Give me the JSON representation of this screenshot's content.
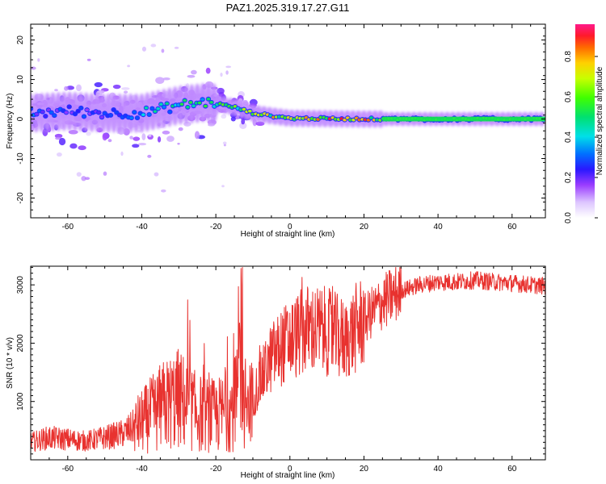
{
  "title": "PAZ1.2025.319.17.27.G11",
  "chart_data": [
    {
      "type": "heatmap",
      "name": "spectrogram",
      "xlabel": "Height of straight line (km)",
      "ylabel": "Frequency (Hz)",
      "xlim": [
        -70,
        69
      ],
      "ylim": [
        -25,
        24
      ],
      "xticks": [
        "-60",
        "-40",
        "-20",
        "0",
        "20",
        "40",
        "60"
      ],
      "yticks": [
        "20",
        "10",
        "0",
        "-10",
        "-20"
      ],
      "colorbar": {
        "label": "Normalized spectral amplitude",
        "range": [
          0.0,
          0.96
        ],
        "ticks": [
          "0.0",
          "0.2",
          "0.4",
          "0.6",
          "0.8"
        ],
        "colormap": "rainbow (white-purple-blue-cyan-green-yellow-orange-red-magenta)"
      },
      "ridge": {
        "description": "Dominant frequency band vs height",
        "x": [
          -70,
          -60,
          -50,
          -40,
          -30,
          -22,
          -15,
          -10,
          -5,
          0,
          10,
          20,
          30,
          40,
          50,
          60,
          69
        ],
        "frequency": [
          1.5,
          2.0,
          1.5,
          1.5,
          3.5,
          4.3,
          3.0,
          1.5,
          0.8,
          0.2,
          0.1,
          0.0,
          0.0,
          0.0,
          0.0,
          0.0,
          0.0
        ],
        "peak_amplitude": [
          0.35,
          0.3,
          0.3,
          0.45,
          0.55,
          0.65,
          0.7,
          0.75,
          0.85,
          0.95,
          0.9,
          0.95,
          0.5,
          0.6,
          0.55,
          0.55,
          0.5
        ]
      }
    },
    {
      "type": "line",
      "name": "snr",
      "xlabel": "Height of straight line (km)",
      "ylabel": "SNR (10 * v/v)",
      "xlim": [
        -70,
        69
      ],
      "ylim": [
        0,
        3320
      ],
      "xticks": [
        "-60",
        "-40",
        "-20",
        "0",
        "20",
        "40",
        "60"
      ],
      "yticks": [
        "1000",
        "2000",
        "3000"
      ],
      "color": "#e8322f",
      "x": [
        -70,
        -65,
        -60,
        -55,
        -50,
        -45,
        -40,
        -35,
        -30,
        -25,
        -20,
        -15,
        -13,
        -12,
        -10,
        -8,
        -5,
        -2,
        0,
        5,
        10,
        15,
        20,
        25,
        30,
        35,
        40,
        45,
        50,
        55,
        60,
        65,
        69
      ],
      "y": [
        300,
        380,
        350,
        320,
        380,
        450,
        650,
        900,
        1050,
        800,
        750,
        900,
        2200,
        700,
        1100,
        1350,
        1750,
        1950,
        2050,
        2250,
        2200,
        2050,
        2400,
        2700,
        2900,
        3000,
        3050,
        3050,
        3080,
        3050,
        3030,
        3000,
        2980
      ]
    }
  ]
}
